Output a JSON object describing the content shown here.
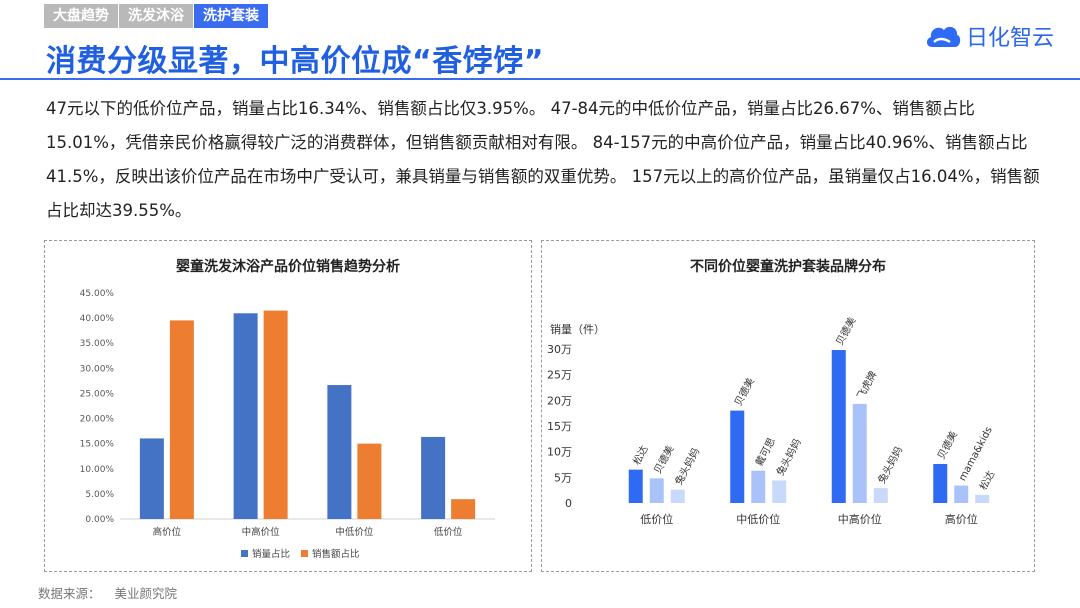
{
  "header": {
    "tabs": [
      {
        "label": "大盘趋势",
        "active": false
      },
      {
        "label": "洗发沐浴",
        "active": false
      },
      {
        "label": "洗护套装",
        "active": true
      }
    ],
    "title": "消费分级显著，中高价位成“香饽饽”",
    "logo_text": "日化智云"
  },
  "summary": "47元以下的低价位产品，销量占比16.34%、销售额占比仅3.95%。 47-84元的中低价位产品，销量占比26.67%、销售额占比15.01%，凭借亲民价格赢得较广泛的消费群体，但销售额贡献相对有限。 84-157元的中高价位产品，销量占比40.96%、销售额占比41.5%，反映出该价位产品在市场中广受认可，兼具销量与销售额的双重优势。 157元以上的高价位产品，虽销量仅占16.04%，销售额占比却达39.55%。",
  "footer": {
    "source_label": "数据来源：",
    "source_value": "美业颜究院"
  },
  "colors": {
    "accent": "#3a6cf0",
    "title": "#1f5fe0",
    "blue_bar": "#4472c4",
    "orange_bar": "#ed7d31",
    "brand_dark": "#2f6af2",
    "brand_mid": "#5e8ff5",
    "brand_light": "#a9c3fa",
    "brand_pale": "#c9d9fc"
  },
  "chart_data": [
    {
      "type": "bar",
      "title": "婴童洗发沐浴产品价位销售趋势分析",
      "categories": [
        "高价位",
        "中高价位",
        "中低价位",
        "低价位"
      ],
      "series": [
        {
          "name": "销量占比",
          "values": [
            16.04,
            40.96,
            26.67,
            16.34
          ]
        },
        {
          "name": "销售额占比",
          "values": [
            39.55,
            41.5,
            15.01,
            3.95
          ]
        }
      ],
      "ylim": [
        0,
        45
      ],
      "y_ticks": [
        "0.00%",
        "5.00%",
        "10.00%",
        "15.00%",
        "20.00%",
        "25.00%",
        "30.00%",
        "35.00%",
        "40.00%",
        "45.00%"
      ],
      "grid": false,
      "legend": "bottom"
    },
    {
      "type": "bar",
      "title": "不同价位婴童洗护套装品牌分布",
      "ylabel": "销量（件）",
      "ylim": [
        0,
        300000
      ],
      "y_ticks": [
        "0",
        "5万",
        "10万",
        "15万",
        "20万",
        "25万",
        "30万"
      ],
      "groups": [
        {
          "category": "低价位",
          "bars": [
            {
              "brand": "松达",
              "value": 65000
            },
            {
              "brand": "贝德美",
              "value": 48000
            },
            {
              "brand": "兔头妈妈",
              "value": 26000
            }
          ]
        },
        {
          "category": "中低价位",
          "bars": [
            {
              "brand": "贝德美",
              "value": 180000
            },
            {
              "brand": "戴可思",
              "value": 63000
            },
            {
              "brand": "兔头妈妈",
              "value": 44000
            }
          ]
        },
        {
          "category": "中高价位",
          "bars": [
            {
              "brand": "贝德美",
              "value": 298000
            },
            {
              "brand": "飞虎牌",
              "value": 193000
            },
            {
              "brand": "兔头妈妈",
              "value": 29000
            }
          ]
        },
        {
          "category": "高价位",
          "bars": [
            {
              "brand": "贝德美",
              "value": 76000
            },
            {
              "brand": "mama&kids",
              "value": 34000
            },
            {
              "brand": "松达",
              "value": 16000
            }
          ]
        }
      ],
      "grid": false,
      "legend": "none"
    }
  ]
}
